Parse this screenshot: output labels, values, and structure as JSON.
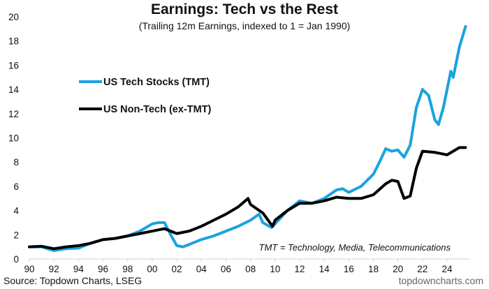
{
  "chart_data": {
    "type": "line",
    "title": "Earnings: Tech vs the Rest",
    "subtitle": "(Trailing 12m Earnings, indexed to 1 = Jan 1990)",
    "xlabel": "",
    "ylabel": "",
    "xlim": [
      1990,
      2025.8
    ],
    "ylim": [
      0,
      20
    ],
    "yticks": [
      0,
      2,
      4,
      6,
      8,
      10,
      12,
      14,
      16,
      18,
      20
    ],
    "xticks": [
      1990,
      1992,
      1994,
      1996,
      1998,
      2000,
      2002,
      2004,
      2006,
      2008,
      2010,
      2012,
      2014,
      2016,
      2018,
      2020,
      2022,
      2024
    ],
    "xtick_labels": [
      "90",
      "92",
      "94",
      "96",
      "98",
      "00",
      "02",
      "04",
      "06",
      "08",
      "10",
      "12",
      "14",
      "16",
      "18",
      "20",
      "22",
      "24"
    ],
    "grid": false,
    "legend_position": "upper-left",
    "annotation": "TMT = Technology, Media, Telecommunications",
    "series": [
      {
        "name": "US Tech Stocks (TMT)",
        "color": "#1AA3DE",
        "x": [
          1990,
          1991,
          1992,
          1993,
          1994,
          1995,
          1996,
          1997,
          1998,
          1999,
          2000,
          2000.5,
          2001,
          2001.5,
          2002,
          2002.5,
          2003,
          2004,
          2005,
          2006,
          2007,
          2008,
          2008.7,
          2009,
          2009.7,
          2010,
          2011,
          2012,
          2013,
          2014,
          2015,
          2015.5,
          2016,
          2017,
          2018,
          2018.5,
          2019,
          2019.5,
          2020,
          2020.5,
          2021,
          2021.5,
          2022,
          2022.5,
          2023,
          2023.3,
          2023.7,
          2024,
          2024.3,
          2024.5,
          2025,
          2025.5
        ],
        "values": [
          1.0,
          1.0,
          0.7,
          0.85,
          0.9,
          1.3,
          1.6,
          1.7,
          1.9,
          2.3,
          2.9,
          3.0,
          3.0,
          2.0,
          1.1,
          1.0,
          1.2,
          1.6,
          1.9,
          2.3,
          2.7,
          3.2,
          3.7,
          3.0,
          2.6,
          2.9,
          4.0,
          4.8,
          4.6,
          5.0,
          5.7,
          5.8,
          5.5,
          6.0,
          7.0,
          8.0,
          9.1,
          8.9,
          9.0,
          8.4,
          9.4,
          12.5,
          14.0,
          13.5,
          11.5,
          11.1,
          12.5,
          14.0,
          15.5,
          15.0,
          17.5,
          19.2
        ]
      },
      {
        "name": "US Non-Tech (ex-TMT)",
        "color": "#000000",
        "x": [
          1990,
          1991,
          1992,
          1993,
          1994,
          1995,
          1996,
          1997,
          1998,
          1999,
          2000,
          2001,
          2002,
          2003,
          2004,
          2005,
          2006,
          2007,
          2007.8,
          2008,
          2009,
          2009.8,
          2010,
          2011,
          2012,
          2013,
          2014,
          2015,
          2016,
          2017,
          2018,
          2019,
          2019.5,
          2020,
          2020.5,
          2021,
          2021.5,
          2022,
          2023,
          2024,
          2025,
          2025.5
        ],
        "values": [
          1.0,
          1.05,
          0.85,
          1.0,
          1.1,
          1.3,
          1.6,
          1.7,
          1.9,
          2.1,
          2.3,
          2.5,
          2.1,
          2.3,
          2.7,
          3.2,
          3.7,
          4.3,
          5.0,
          4.5,
          3.8,
          2.7,
          3.2,
          4.0,
          4.6,
          4.6,
          4.8,
          5.1,
          5.0,
          5.0,
          5.3,
          6.2,
          6.5,
          6.4,
          5.0,
          5.2,
          7.5,
          8.9,
          8.8,
          8.6,
          9.2,
          9.2
        ]
      }
    ]
  },
  "footer": {
    "source": "Source: Topdown Charts, LSEG",
    "brand": "topdowncharts.com"
  }
}
